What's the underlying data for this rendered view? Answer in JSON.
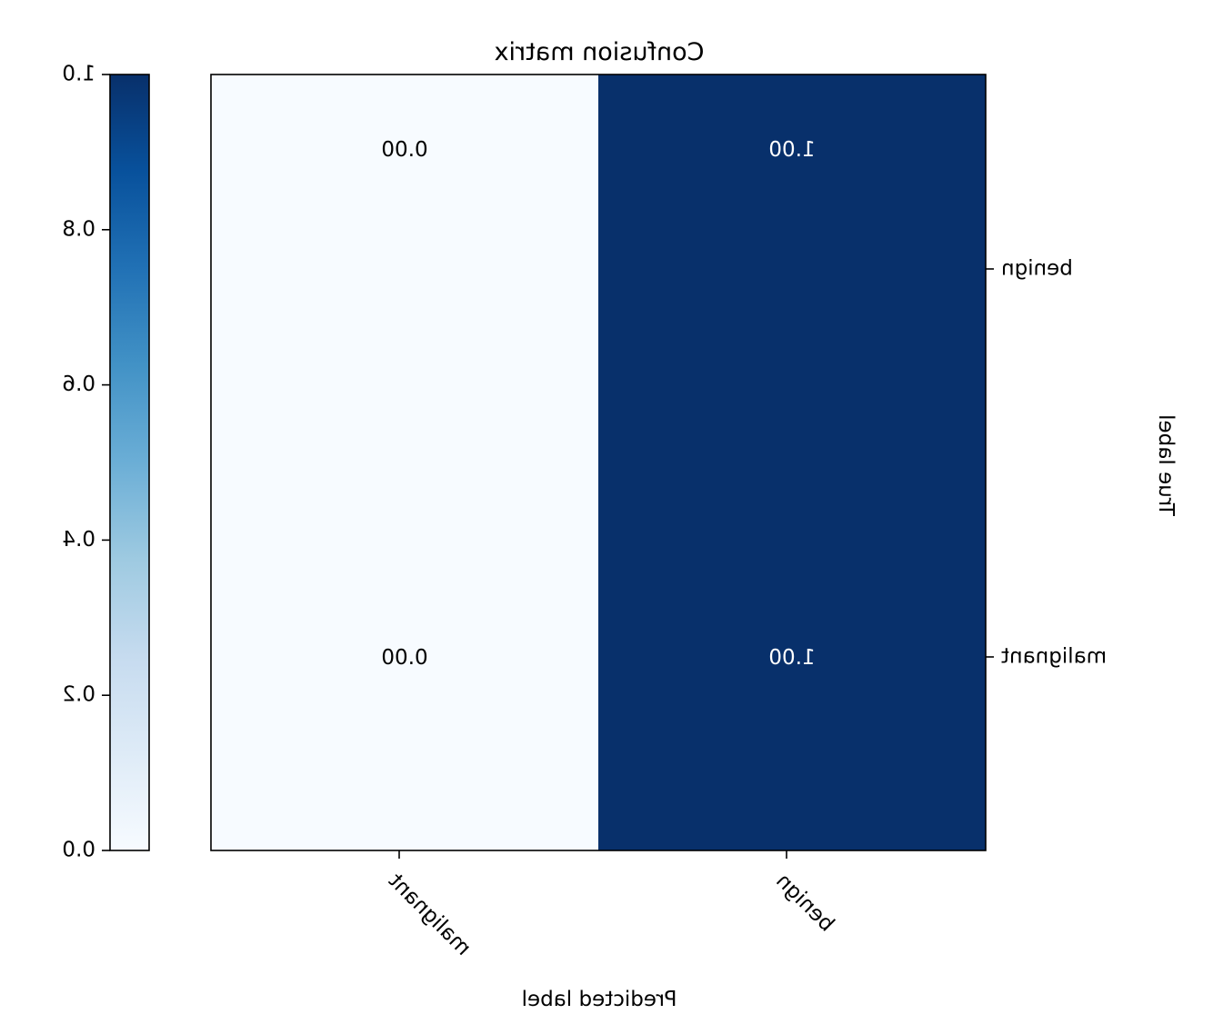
{
  "chart_data": {
    "type": "heatmap",
    "title": "Confusion matrix",
    "xlabel": "Predicted label",
    "ylabel": "True label",
    "x_categories": [
      "benign",
      "malignant"
    ],
    "y_categories": [
      "benign",
      "malignant"
    ],
    "values": [
      [
        1.0,
        0.0
      ],
      [
        1.0,
        0.0
      ]
    ],
    "value_labels": [
      [
        "1.00",
        "0.00"
      ],
      [
        "1.00",
        "0.00"
      ]
    ],
    "colormap": "Blues",
    "colormap_low": "#f7fbff",
    "colormap_high": "#08306b",
    "colorbar": {
      "range": [
        0.0,
        1.0
      ],
      "ticks": [
        "0.0",
        "0.2",
        "0.4",
        "0.6",
        "0.8",
        "1.0"
      ]
    },
    "orientation": "mirrored horizontally",
    "x_tick_rotation": "45 degrees"
  }
}
